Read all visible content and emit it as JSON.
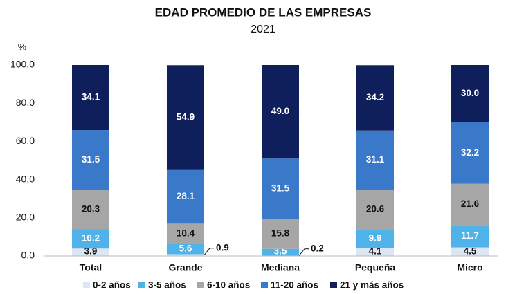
{
  "chart_data": {
    "type": "stacked_bar",
    "title": "EDAD PROMEDIO DE LAS EMPRESAS",
    "subtitle": "2021",
    "y_label": "%",
    "categories": [
      "Total",
      "Grande",
      "Mediana",
      "Pequeña",
      "Micro"
    ],
    "series": [
      {
        "name": "0-2 años",
        "color": "#dce6f2",
        "label_color": "#111111",
        "values": [
          3.9,
          0.9,
          0.2,
          4.1,
          4.5
        ],
        "value_labels": [
          "3.9",
          "0.9",
          "0.2",
          "4.1",
          "4.5"
        ]
      },
      {
        "name": "3-5 años",
        "color": "#4fb3ea",
        "label_color": "#ffffff",
        "values": [
          10.2,
          5.6,
          3.5,
          9.9,
          11.7
        ],
        "value_labels": [
          "10.2",
          "5.6",
          "3.5",
          "9.9",
          "11.7"
        ]
      },
      {
        "name": "6-10 años",
        "color": "#a6a6a6",
        "label_color": "#111111",
        "values": [
          20.3,
          10.4,
          15.8,
          20.6,
          21.6
        ],
        "value_labels": [
          "20.3",
          "10.4",
          "15.8",
          "20.6",
          "21.6"
        ]
      },
      {
        "name": "11-20 años",
        "color": "#3a78c9",
        "label_color": "#ffffff",
        "values": [
          31.5,
          28.1,
          31.5,
          31.1,
          32.2
        ],
        "value_labels": [
          "31.5",
          "28.1",
          "31.5",
          "31.1",
          "32.2"
        ]
      },
      {
        "name": "21 y más años",
        "color": "#0e1f5b",
        "label_color": "#ffffff",
        "values": [
          34.1,
          54.9,
          49.0,
          34.2,
          30.0
        ],
        "value_labels": [
          "34.1",
          "54.9",
          "49.0",
          "34.2",
          "30.0"
        ]
      }
    ],
    "ylim": [
      0,
      100
    ],
    "yticks": [
      {
        "value": 0,
        "label": "0.0"
      },
      {
        "value": 20,
        "label": "20.0"
      },
      {
        "value": 40,
        "label": "40.0"
      },
      {
        "value": 60,
        "label": "60.0"
      },
      {
        "value": 80,
        "label": "80.0"
      },
      {
        "value": 100,
        "label": "100.0"
      }
    ],
    "grid": false,
    "legend": "bottom"
  }
}
